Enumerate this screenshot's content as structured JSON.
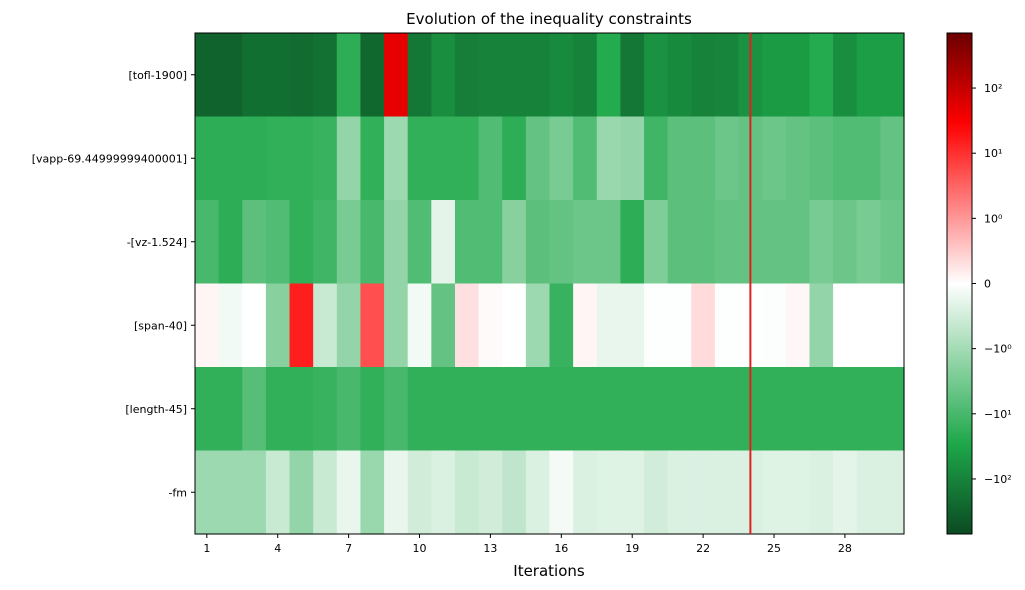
{
  "chart_data": {
    "type": "heatmap",
    "title": "Evolution of the inequality constraints",
    "xlabel": "Iterations",
    "ylabel": "",
    "rows": [
      "[tofl-1900]",
      "[vapp-69.44999999400001]",
      "-[vz-1.524]",
      "[span-40]",
      "[length-45]",
      "-fm"
    ],
    "x_ticks": [
      "1",
      "4",
      "7",
      "10",
      "13",
      "16",
      "19",
      "22",
      "25",
      "28"
    ],
    "iterations": [
      1,
      2,
      3,
      4,
      5,
      6,
      7,
      8,
      9,
      10,
      11,
      12,
      13,
      14,
      15,
      16,
      17,
      18,
      19,
      20,
      21,
      22,
      23,
      24,
      25,
      26,
      27,
      28,
      29,
      30
    ],
    "scale": "symlog",
    "colormap": [
      "#0b4a22",
      "#1ea84a",
      "#ffffff",
      "#ff0000",
      "#6b0000"
    ],
    "colorbar": {
      "ticks": [
        "10²",
        "10¹",
        "10⁰",
        "0",
        "−10⁰",
        "−10¹",
        "−10²"
      ],
      "tick_values": [
        100,
        10,
        1,
        0,
        -1,
        -10,
        -100
      ],
      "range": [
        -700,
        700
      ]
    },
    "vertical_marker": {
      "x": 24,
      "color": "#e02020"
    },
    "values": [
      [
        -300,
        -300,
        -200,
        -200,
        -220,
        -180,
        -20,
        -250,
        50,
        -150,
        -70,
        -120,
        -100,
        -100,
        -100,
        -80,
        -100,
        -25,
        -150,
        -60,
        -80,
        -100,
        -90,
        -60,
        -45,
        -45,
        -25,
        -70,
        -40,
        -40
      ],
      [
        -20,
        -20,
        -20,
        -18,
        -18,
        -15,
        -1.5,
        -18,
        -1.2,
        -18,
        -18,
        -18,
        -8,
        -20,
        -5,
        -3,
        -8,
        -1.3,
        -1.5,
        -12,
        -6,
        -6,
        -4,
        -5,
        -4,
        -5,
        -6,
        -8,
        -8,
        -5
      ],
      [
        -10,
        -20,
        -6,
        -8,
        -18,
        -12,
        -3,
        -10,
        -1.5,
        -8,
        -0.3,
        -8,
        -8,
        -2,
        -6,
        -5,
        -4,
        -4,
        -20,
        -2.5,
        -6,
        -6,
        -5,
        -5,
        -5,
        -5,
        -3,
        -4,
        -3,
        -4
      ],
      [
        0.1,
        -0.15,
        0.0,
        -2,
        15,
        -0.6,
        -1.5,
        5,
        -1.5,
        -0.15,
        -5,
        0.3,
        0.05,
        0.0,
        -1.2,
        -15,
        0.1,
        -0.25,
        -0.25,
        -0.02,
        -0.02,
        0.35,
        -0.02,
        -0.02,
        -0.03,
        0.08,
        -1.5,
        0.0,
        0.0,
        0.0
      ],
      [
        -18,
        -18,
        -7,
        -18,
        -18,
        -15,
        -10,
        -18,
        -10,
        -18,
        -18,
        -18,
        -18,
        -18,
        -18,
        -18,
        -18,
        -18,
        -18,
        -18,
        -18,
        -18,
        -18,
        -18,
        -18,
        -18,
        -18,
        -18,
        -18,
        -18
      ],
      [
        -1.2,
        -1.2,
        -1.2,
        -0.6,
        -1.5,
        -0.6,
        -0.25,
        -1.3,
        -0.25,
        -0.5,
        -0.4,
        -0.6,
        -0.5,
        -0.7,
        -0.4,
        -0.12,
        -0.4,
        -0.35,
        -0.35,
        -0.5,
        -0.4,
        -0.4,
        -0.4,
        -0.4,
        -0.35,
        -0.35,
        -0.4,
        -0.3,
        -0.4,
        -0.4
      ]
    ]
  }
}
